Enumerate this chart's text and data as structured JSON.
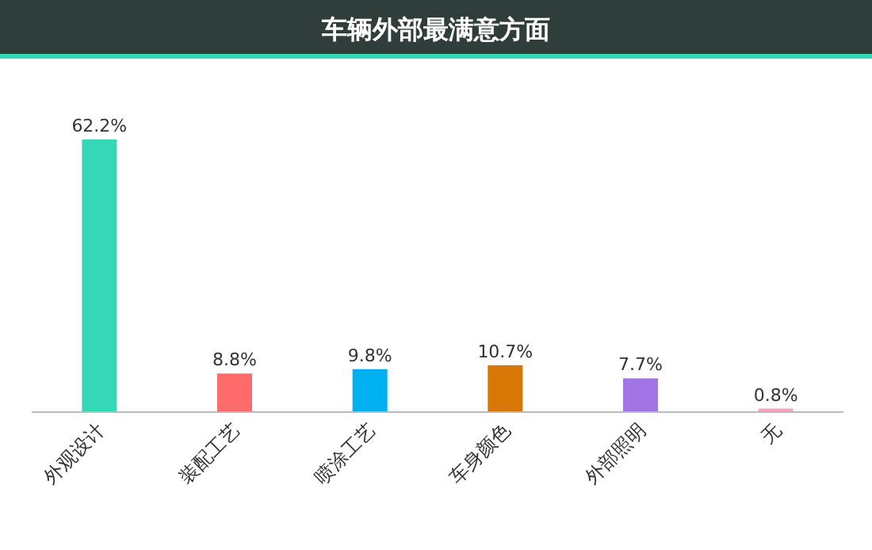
{
  "chart_data": {
    "type": "bar",
    "title": "车辆外部最满意方面",
    "categories": [
      "外观设计",
      "装配工艺",
      "喷涂工艺",
      "车身颜色",
      "外部照明",
      "无"
    ],
    "values": [
      62.2,
      8.8,
      9.8,
      10.7,
      7.7,
      0.8
    ],
    "colors": [
      "#36d7b7",
      "#ff6b6b",
      "#00b0f0",
      "#d97706",
      "#a274e6",
      "#f7a1c4"
    ],
    "value_labels": [
      "62.2%",
      "8.8%",
      "9.8%",
      "10.7%",
      "7.7%",
      "0.8%"
    ],
    "tick_labels": "x"
  }
}
